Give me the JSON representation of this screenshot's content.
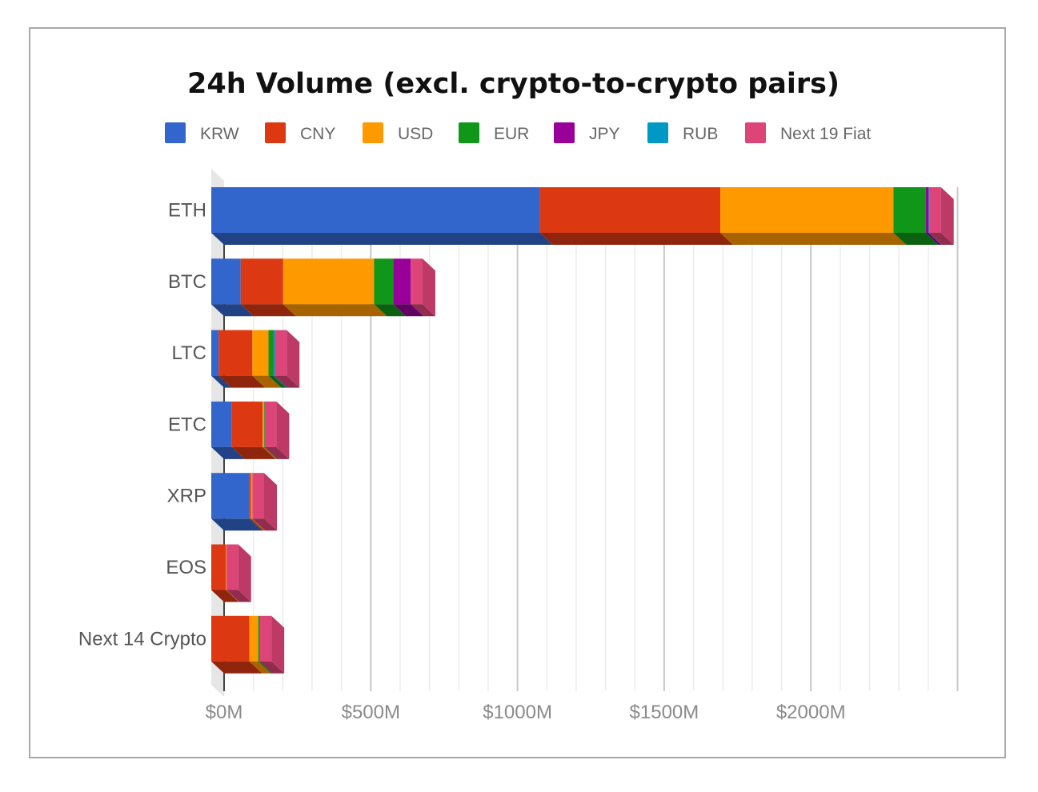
{
  "chart_data": {
    "type": "bar",
    "orientation": "horizontal",
    "stacked": true,
    "style_3d": true,
    "title": "24h Volume (excl. crypto-to-crypto pairs)",
    "legend_position": "top",
    "grid": true,
    "xlim": [
      0,
      2500
    ],
    "x_ticks": [
      0,
      500,
      1000,
      1500,
      2000
    ],
    "x_tick_labels": [
      "$0M",
      "$500M",
      "$1000M",
      "$1500M",
      "$2000M"
    ],
    "categories": [
      "ETH",
      "BTC",
      "LTC",
      "ETC",
      "XRP",
      "EOS",
      "Next 14 Crypto"
    ],
    "series": [
      {
        "name": "KRW",
        "color": "#3366cc",
        "values": [
          1120,
          100,
          25,
          70,
          130,
          0,
          0
        ]
      },
      {
        "name": "CNY",
        "color": "#dc3912",
        "values": [
          615,
          145,
          115,
          105,
          5,
          50,
          130
        ]
      },
      {
        "name": "USD",
        "color": "#ff9900",
        "values": [
          590,
          310,
          55,
          5,
          5,
          2,
          30
        ]
      },
      {
        "name": "EUR",
        "color": "#109618",
        "values": [
          110,
          65,
          15,
          2,
          0,
          0,
          5
        ]
      },
      {
        "name": "JPY",
        "color": "#990099",
        "values": [
          10,
          60,
          2,
          0,
          0,
          0,
          0
        ]
      },
      {
        "name": "RUB",
        "color": "#0099c6",
        "values": [
          2,
          0,
          5,
          0,
          0,
          0,
          0
        ]
      },
      {
        "name": "Next 19 Fiat",
        "color": "#dd4477",
        "values": [
          40,
          40,
          40,
          40,
          40,
          40,
          40
        ]
      }
    ]
  }
}
